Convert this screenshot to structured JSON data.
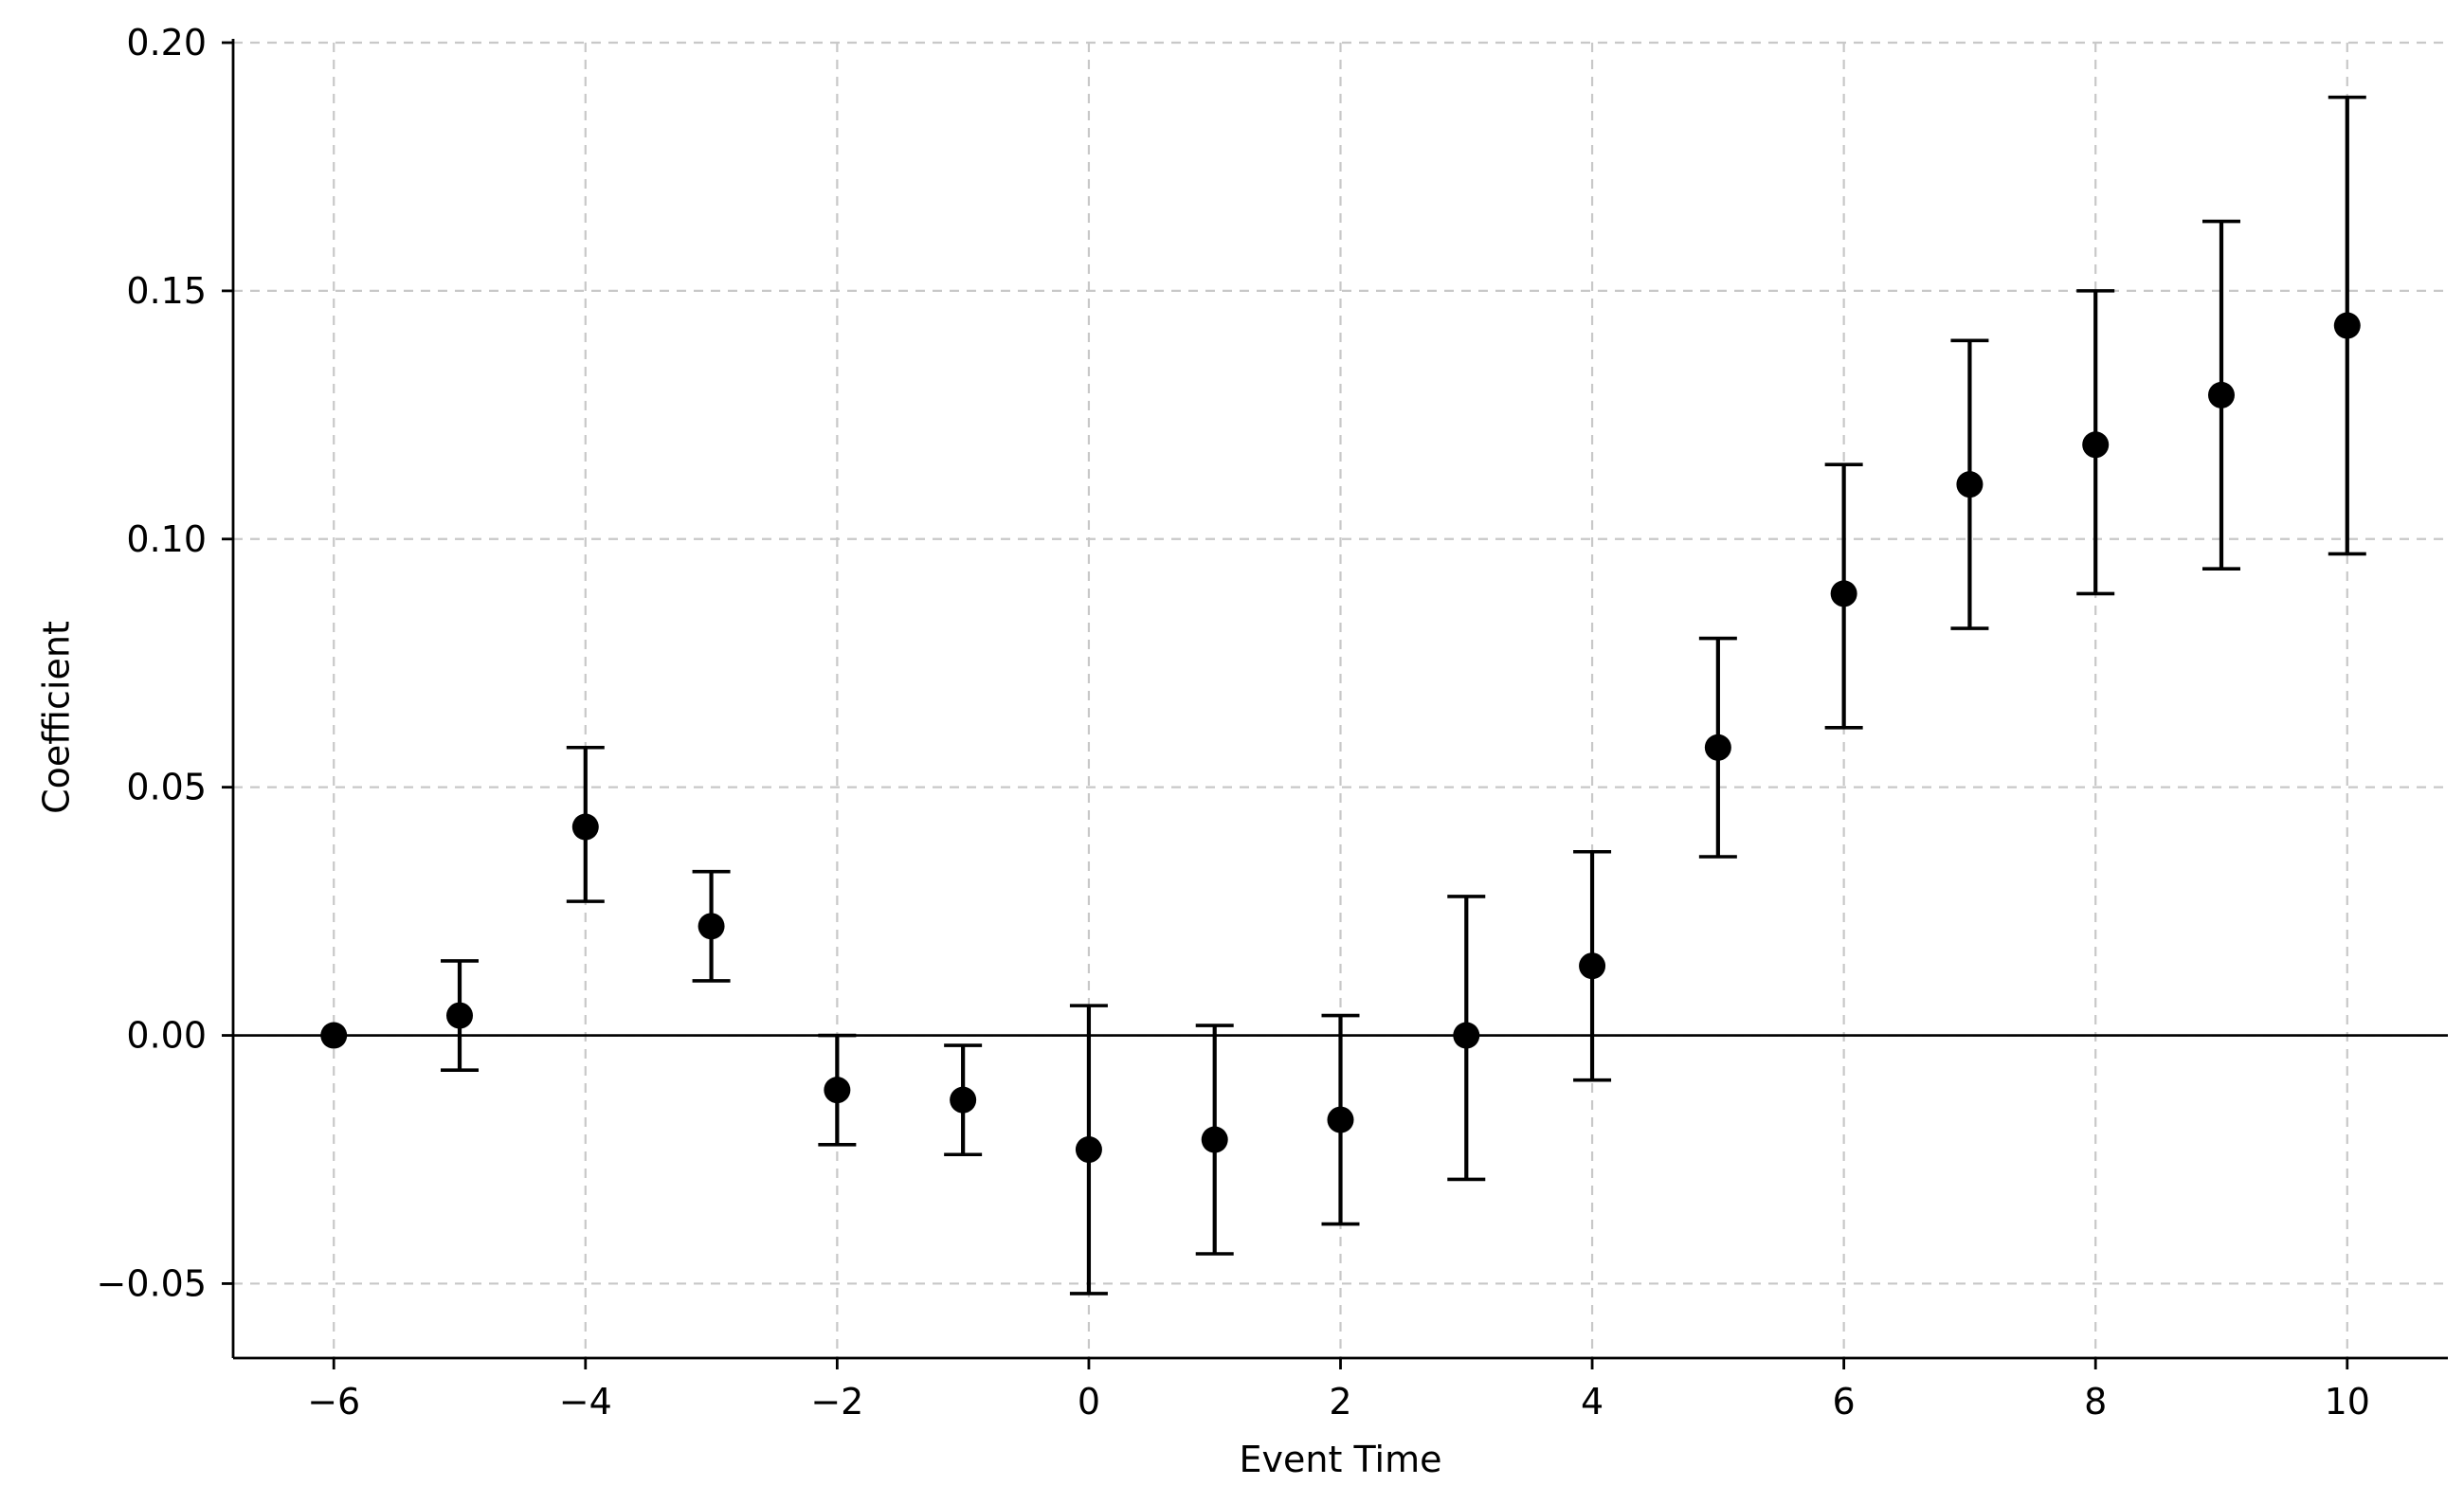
{
  "chart_data": {
    "type": "scatter",
    "title": "",
    "xlabel": "Event Time",
    "ylabel": "Coefficient",
    "xlim": [
      -6.8,
      10.8
    ],
    "ylim": [
      -0.065,
      0.2
    ],
    "xticks": [
      -6,
      -4,
      -2,
      0,
      2,
      4,
      6,
      8,
      10
    ],
    "xtick_labels": [
      "−6",
      "−4",
      "−2",
      "0",
      "2",
      "4",
      "6",
      "8",
      "10"
    ],
    "yticks": [
      -0.05,
      0.0,
      0.05,
      0.1,
      0.15,
      0.2
    ],
    "ytick_labels": [
      "−0.05",
      "0.00",
      "0.05",
      "0.10",
      "0.15",
      "0.20"
    ],
    "grid": true,
    "reference_line_y": 0.0,
    "points": [
      {
        "x": -6,
        "y": 0.0,
        "lower": 0.0,
        "upper": 0.0
      },
      {
        "x": -5,
        "y": 0.004,
        "lower": -0.007,
        "upper": 0.015
      },
      {
        "x": -4,
        "y": 0.042,
        "lower": 0.027,
        "upper": 0.058
      },
      {
        "x": -3,
        "y": 0.022,
        "lower": 0.011,
        "upper": 0.033
      },
      {
        "x": -2,
        "y": -0.011,
        "lower": -0.022,
        "upper": 0.0
      },
      {
        "x": -1,
        "y": -0.013,
        "lower": -0.024,
        "upper": -0.002
      },
      {
        "x": 0,
        "y": -0.023,
        "lower": -0.052,
        "upper": 0.006
      },
      {
        "x": 1,
        "y": -0.021,
        "lower": -0.044,
        "upper": 0.002
      },
      {
        "x": 2,
        "y": -0.017,
        "lower": -0.038,
        "upper": 0.004
      },
      {
        "x": 3,
        "y": 0.0,
        "lower": -0.029,
        "upper": 0.028
      },
      {
        "x": 4,
        "y": 0.014,
        "lower": -0.009,
        "upper": 0.037
      },
      {
        "x": 5,
        "y": 0.058,
        "lower": 0.036,
        "upper": 0.08
      },
      {
        "x": 6,
        "y": 0.089,
        "lower": 0.062,
        "upper": 0.115
      },
      {
        "x": 7,
        "y": 0.111,
        "lower": 0.082,
        "upper": 0.14
      },
      {
        "x": 8,
        "y": 0.119,
        "lower": 0.089,
        "upper": 0.15
      },
      {
        "x": 9,
        "y": 0.129,
        "lower": 0.094,
        "upper": 0.164
      },
      {
        "x": 10,
        "y": 0.143,
        "lower": 0.097,
        "upper": 0.189
      }
    ],
    "colors": {
      "points": "#000000",
      "grid": "#c8c8c8"
    }
  }
}
